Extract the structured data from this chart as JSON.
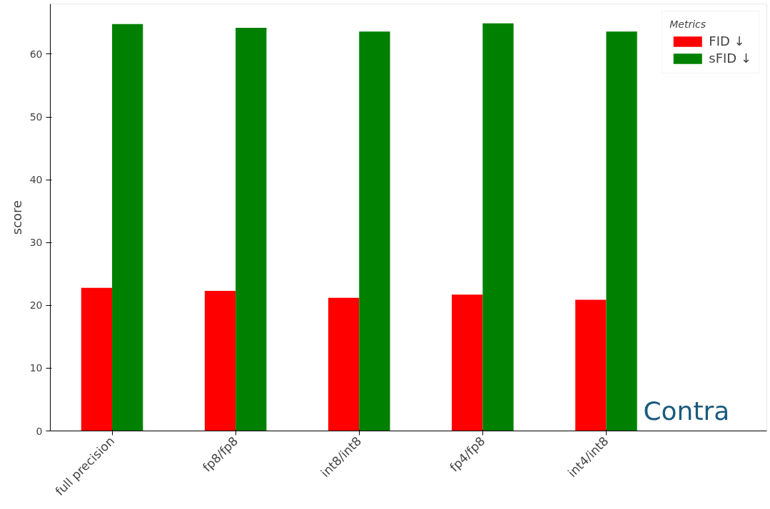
{
  "chart_data": {
    "type": "bar",
    "ylabel": "score",
    "categories": [
      "full precision",
      "fp8/fp8",
      "int8/int8",
      "fp4/fp8",
      "int4/int8"
    ],
    "series": [
      {
        "name": "FID ↓",
        "color": "#ff0000",
        "values": [
          22.8,
          22.3,
          21.2,
          21.7,
          20.9
        ]
      },
      {
        "name": "sFID ↓",
        "color": "#008000",
        "values": [
          64.8,
          64.2,
          63.6,
          64.9,
          63.6
        ]
      }
    ],
    "ylim": [
      0,
      68
    ],
    "yticks": [
      0,
      10,
      20,
      30,
      40,
      50,
      60
    ],
    "grid": false,
    "legend": "top right",
    "legend_title": "Metrics",
    "annotations": [
      "Contra"
    ]
  }
}
